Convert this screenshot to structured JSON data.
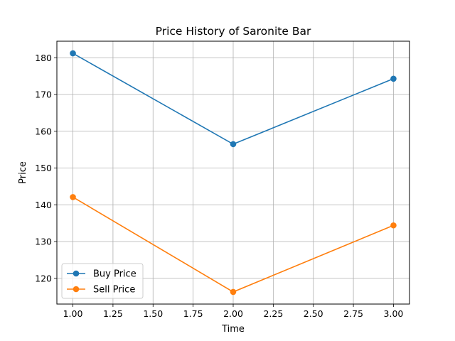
{
  "chart_data": {
    "type": "line",
    "title": "Price History of Saronite Bar",
    "xlabel": "Time",
    "ylabel": "Price",
    "x": [
      1,
      2,
      3
    ],
    "xlim": [
      0.9,
      3.1
    ],
    "ylim": [
      113,
      184.5
    ],
    "xticks": [
      1.0,
      1.25,
      1.5,
      1.75,
      2.0,
      2.25,
      2.5,
      2.75,
      3.0
    ],
    "xtick_labels": [
      "1.00",
      "1.25",
      "1.50",
      "1.75",
      "2.00",
      "2.25",
      "2.50",
      "2.75",
      "3.00"
    ],
    "yticks": [
      120,
      130,
      140,
      150,
      160,
      170,
      180
    ],
    "ytick_labels": [
      "120",
      "130",
      "140",
      "150",
      "160",
      "170",
      "180"
    ],
    "grid": true,
    "legend_position": "lower-left",
    "series": [
      {
        "name": "Buy Price",
        "values": [
          181.2,
          156.5,
          174.3
        ],
        "color": "#1f77b4"
      },
      {
        "name": "Sell Price",
        "values": [
          142.1,
          116.3,
          134.4
        ],
        "color": "#ff7f0e"
      }
    ]
  }
}
